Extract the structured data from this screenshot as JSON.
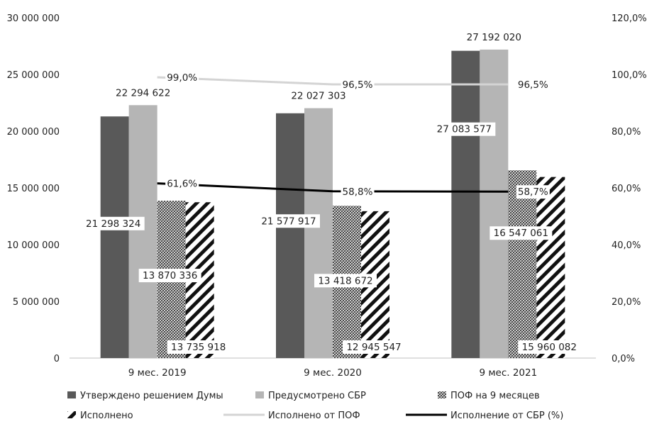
{
  "chart_data": {
    "type": "bar",
    "categories": [
      "9 мес. 2019",
      "9 мес. 2020",
      "9 мес. 2021"
    ],
    "series": [
      {
        "name": "Утверждено решением Думы",
        "kind": "bar",
        "axis": "left",
        "fill": "#595959",
        "pattern": "solid",
        "values": [
          21298324,
          21577917,
          27083577
        ],
        "labels": [
          "21 298 324",
          "21 577 917",
          "27 083 577"
        ]
      },
      {
        "name": "Предусмотрено СБР",
        "kind": "bar",
        "axis": "left",
        "fill": "#b5b5b5",
        "pattern": "solid",
        "values": [
          22294622,
          22027303,
          27192020
        ],
        "labels": [
          "22 294 622",
          "22 027 303",
          "27 192 020"
        ]
      },
      {
        "name": "ПОФ на 9 месяцев",
        "kind": "bar",
        "axis": "left",
        "fill": "#333333",
        "pattern": "crosshatch",
        "values": [
          13870336,
          13418672,
          16547061
        ],
        "labels": [
          "13 870 336",
          "13 418 672",
          "16 547 061"
        ]
      },
      {
        "name": "Исполнено",
        "kind": "bar",
        "axis": "left",
        "fill": "#111111",
        "pattern": "diagonal",
        "values": [
          13735918,
          12945547,
          15960082
        ],
        "labels": [
          "13 735 918",
          "12 945 547",
          "15 960 082"
        ]
      },
      {
        "name": "Исполнено от ПОФ",
        "kind": "line",
        "axis": "right",
        "color": "#d4d4d4",
        "values": [
          99.0,
          96.5,
          96.5
        ],
        "labels": [
          "99,0%",
          "96,5%",
          "96,5%"
        ]
      },
      {
        "name": "Исполнение от СБР (%)",
        "kind": "line",
        "axis": "right",
        "color": "#000000",
        "values": [
          61.6,
          58.8,
          58.7
        ],
        "labels": [
          "61,6%",
          "58,8%",
          "58,7%"
        ]
      }
    ],
    "ylim": [
      0,
      30000000
    ],
    "yticks": [
      0,
      5000000,
      10000000,
      15000000,
      20000000,
      25000000,
      30000000
    ],
    "ytick_labels": [
      "0",
      "5 000 000",
      "10 000 000",
      "15 000 000",
      "20 000 000",
      "25 000 000",
      "30 000 000"
    ],
    "y2lim": [
      0,
      120
    ],
    "y2ticks": [
      0,
      20,
      40,
      60,
      80,
      100,
      120
    ],
    "y2tick_labels": [
      "0,0%",
      "20,0%",
      "40,0%",
      "60,0%",
      "80,0%",
      "100,0%",
      "120,0%"
    ],
    "grid": false,
    "legend_position": "bottom",
    "title": "",
    "xlabel": "",
    "ylabel": ""
  }
}
